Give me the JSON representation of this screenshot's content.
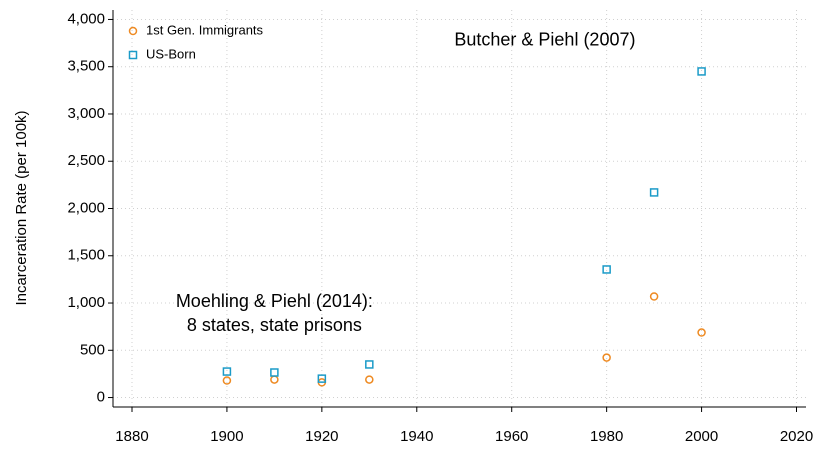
{
  "chart_data": {
    "type": "scatter",
    "ylabel": "Incarceration Rate (per 100k)",
    "xlim": [
      1876,
      2022
    ],
    "xticks": [
      1880,
      1900,
      1920,
      1940,
      1960,
      1980,
      2000,
      2020
    ],
    "ylim": [
      -100,
      4100
    ],
    "yticks": [
      0,
      500,
      {
        "value": 1000,
        "label": "1,000"
      },
      {
        "value": 1500,
        "label": "1,500"
      },
      {
        "value": 2000,
        "label": "2,000"
      },
      {
        "value": 2500,
        "label": "2,500"
      },
      {
        "value": 3000,
        "label": "3,000"
      },
      {
        "value": 3500,
        "label": "3,500"
      },
      {
        "value": 4000,
        "label": "4,000"
      }
    ],
    "grid": true,
    "legend": "upper-left",
    "series": [
      {
        "name": "1st Gen. Immigrants",
        "color": "#ee8a22",
        "marker": "circle",
        "x": [
          1900,
          1910,
          1920,
          1930,
          1980,
          1990,
          2000
        ],
        "values": [
          180,
          190,
          160,
          190,
          423,
          1069,
          688
        ]
      },
      {
        "name": "US-Born",
        "color": "#1b9bc8",
        "marker": "square",
        "x": [
          1900,
          1910,
          1920,
          1930,
          1980,
          1990,
          2000
        ],
        "values": [
          275,
          265,
          200,
          350,
          1355,
          2170,
          3450
        ]
      }
    ],
    "annotations": [
      {
        "text": "Butcher & Piehl (2007)",
        "x": 1967,
        "y": 3775
      },
      {
        "text": "Moehling & Piehl (2014):",
        "x": 1910,
        "y": 1010
      },
      {
        "text": "8 states, state prisons",
        "x": 1910,
        "y": 755
      }
    ]
  }
}
